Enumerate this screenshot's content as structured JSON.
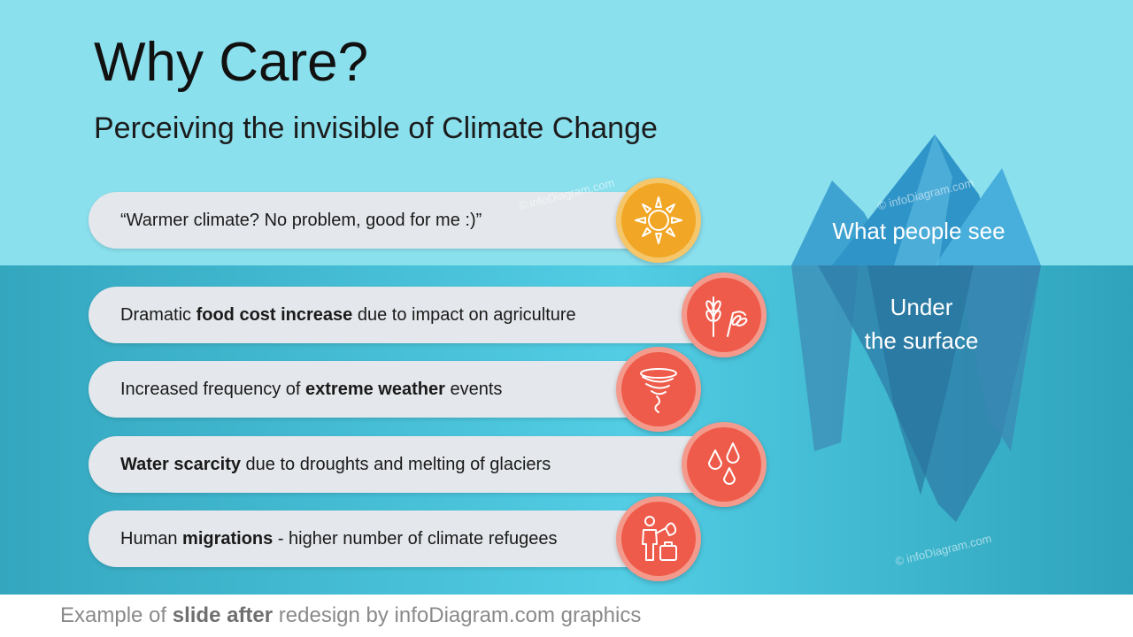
{
  "slide": {
    "title": "Why Care?",
    "subtitle": "Perceiving the invisible of Climate Change"
  },
  "iceberg": {
    "above_label": "What people see",
    "below_label": "Under\nthe surface"
  },
  "above_item": {
    "text": "“Warmer climate? No problem, good for me :)”",
    "icon": "sun-icon"
  },
  "below_items": [
    {
      "pre": "Dramatic ",
      "bold": "food cost increase",
      "post": " due to impact on agriculture",
      "icon": "wheat-icon"
    },
    {
      "pre": "Increased frequency of ",
      "bold": "extreme weather",
      "post": " events",
      "icon": "tornado-icon"
    },
    {
      "pre": "",
      "bold": "Water scarcity",
      "post": " due to droughts and melting of glaciers",
      "icon": "water-drops-icon"
    },
    {
      "pre": "Human ",
      "bold": "migrations",
      "post": " - higher number of climate refugees",
      "icon": "refugee-icon"
    }
  ],
  "watermark": "© infoDiagram.com",
  "footer": {
    "pre": "Example of ",
    "bold": "slide after",
    "post": " redesign by infoDiagram.com graphics"
  },
  "colors": {
    "sky": "#8be0ee",
    "sea": "#52cde4",
    "sun": "#f1a625",
    "alert_red": "#ee5b4a",
    "pill": "#e4e7eb"
  }
}
